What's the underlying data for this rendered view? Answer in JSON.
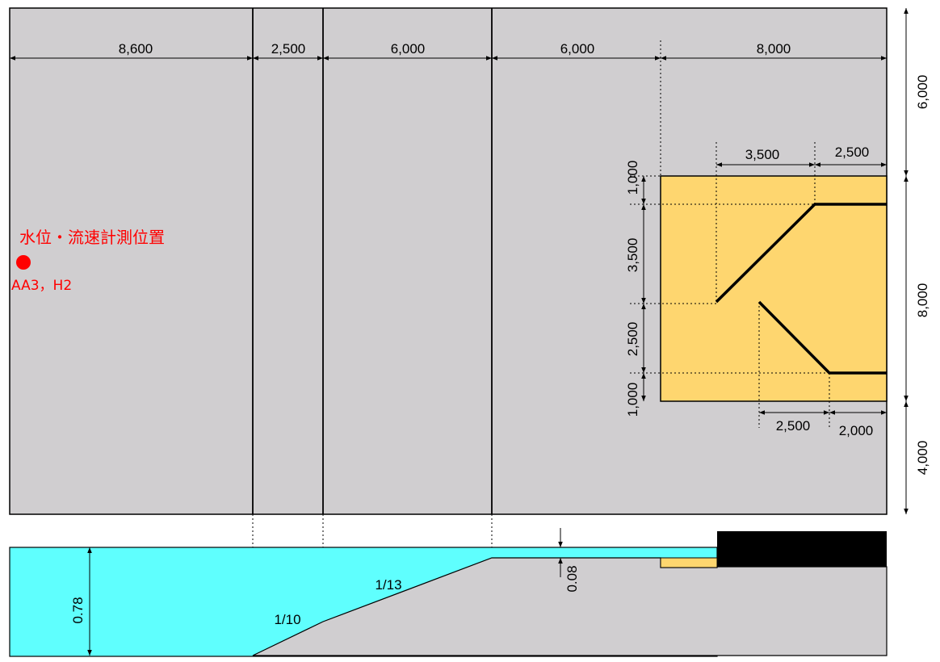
{
  "plan_view": {
    "top_dimensions": [
      "8,600",
      "2,500",
      "6,000",
      "6,000",
      "8,000"
    ],
    "right_dimensions": [
      "6,000",
      "8,000",
      "4,000"
    ],
    "measurement_label": "水位・流速計測位置",
    "measurement_point_ids": "AA3，H2",
    "structure_top_dimensions": [
      "3,500",
      "2,500"
    ],
    "structure_left_dimensions": [
      "1,000",
      "3,500",
      "2,500",
      "1,000"
    ],
    "structure_bottom_dimensions": [
      "2,500",
      "2,000"
    ],
    "colors": {
      "basin": "#d0ced0",
      "structure": "#fed66f",
      "measurement_point": "#ff0000"
    }
  },
  "section_view": {
    "water_depth": "0.78",
    "top_water_depth": "0.08",
    "slope_lower": "1/10",
    "slope_upper": "1/13",
    "colors": {
      "water": "#5ffffe",
      "ground": "#d0ced0",
      "block": "#000000",
      "structure": "#fed66f"
    }
  }
}
